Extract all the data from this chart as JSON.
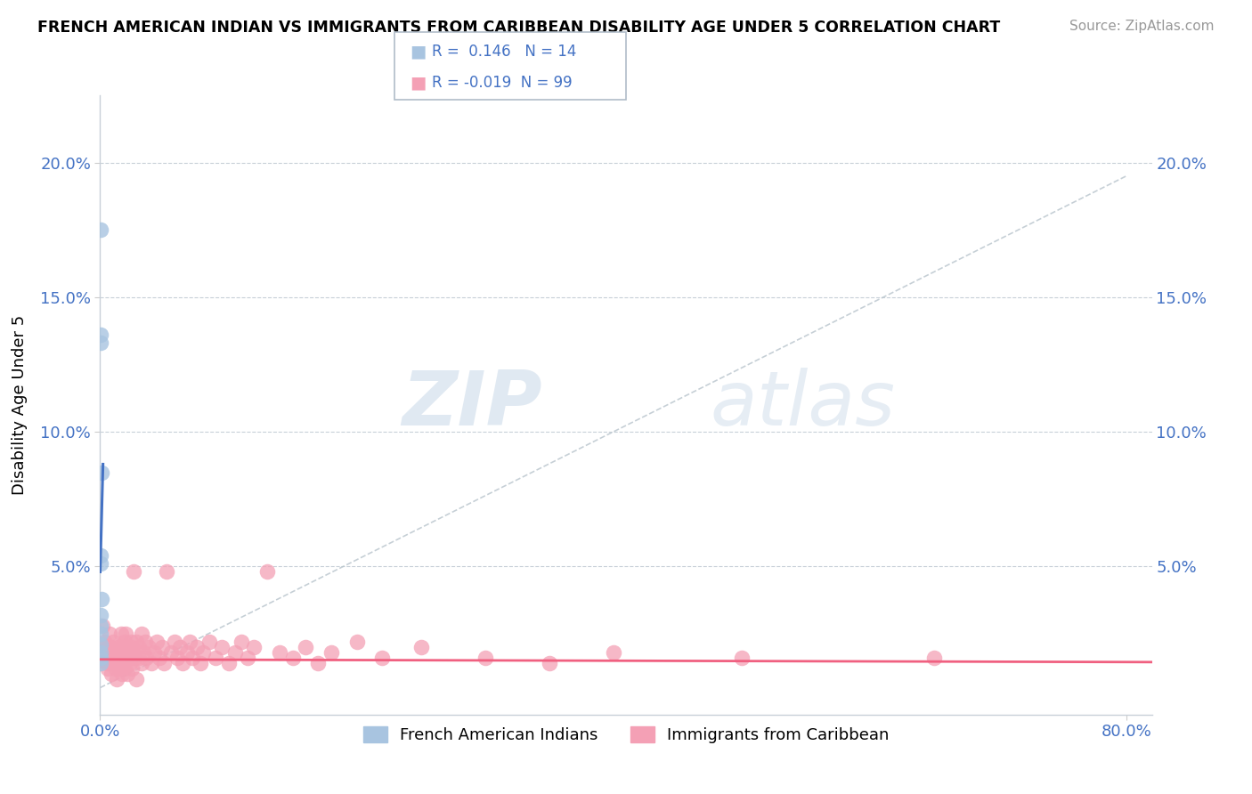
{
  "title": "FRENCH AMERICAN INDIAN VS IMMIGRANTS FROM CARIBBEAN DISABILITY AGE UNDER 5 CORRELATION CHART",
  "source": "Source: ZipAtlas.com",
  "ylabel": "Disability Age Under 5",
  "r_blue": 0.146,
  "n_blue": 14,
  "r_pink": -0.019,
  "n_pink": 99,
  "xlim": [
    0,
    0.82
  ],
  "ylim": [
    -0.005,
    0.225
  ],
  "yticks": [
    0.05,
    0.1,
    0.15,
    0.2
  ],
  "ytick_labels": [
    "5.0%",
    "10.0%",
    "15.0%",
    "20.0%"
  ],
  "xticks": [
    0.0,
    0.8
  ],
  "xtick_labels": [
    "0.0%",
    "80.0%"
  ],
  "color_blue": "#a8c4e0",
  "color_pink": "#f4a0b5",
  "line_blue": "#4472c4",
  "line_pink": "#f06080",
  "line_dashed": "#b8c4cc",
  "watermark_zip": "ZIP",
  "watermark_atlas": "atlas",
  "background": "#ffffff",
  "blue_scatter": [
    [
      0.0005,
      0.175
    ],
    [
      0.0005,
      0.136
    ],
    [
      0.0005,
      0.133
    ],
    [
      0.0008,
      0.085
    ],
    [
      0.0005,
      0.054
    ],
    [
      0.0005,
      0.051
    ],
    [
      0.0005,
      0.032
    ],
    [
      0.0005,
      0.028
    ],
    [
      0.0008,
      0.038
    ],
    [
      0.0005,
      0.025
    ],
    [
      0.0005,
      0.021
    ],
    [
      0.0005,
      0.018
    ],
    [
      0.0005,
      0.016
    ],
    [
      0.0005,
      0.014
    ]
  ],
  "pink_scatter": [
    [
      0.001,
      0.02
    ],
    [
      0.002,
      0.028
    ],
    [
      0.002,
      0.015
    ],
    [
      0.003,
      0.022
    ],
    [
      0.003,
      0.018
    ],
    [
      0.004,
      0.016
    ],
    [
      0.005,
      0.014
    ],
    [
      0.005,
      0.02
    ],
    [
      0.006,
      0.018
    ],
    [
      0.006,
      0.012
    ],
    [
      0.007,
      0.025
    ],
    [
      0.007,
      0.016
    ],
    [
      0.008,
      0.02
    ],
    [
      0.008,
      0.014
    ],
    [
      0.009,
      0.018
    ],
    [
      0.009,
      0.01
    ],
    [
      0.01,
      0.022
    ],
    [
      0.01,
      0.016
    ],
    [
      0.011,
      0.02
    ],
    [
      0.011,
      0.014
    ],
    [
      0.012,
      0.018
    ],
    [
      0.012,
      0.012
    ],
    [
      0.013,
      0.016
    ],
    [
      0.013,
      0.008
    ],
    [
      0.014,
      0.02
    ],
    [
      0.014,
      0.014
    ],
    [
      0.015,
      0.018
    ],
    [
      0.015,
      0.012
    ],
    [
      0.016,
      0.025
    ],
    [
      0.016,
      0.016
    ],
    [
      0.017,
      0.02
    ],
    [
      0.017,
      0.01
    ],
    [
      0.018,
      0.018
    ],
    [
      0.018,
      0.014
    ],
    [
      0.019,
      0.022
    ],
    [
      0.019,
      0.012
    ],
    [
      0.02,
      0.025
    ],
    [
      0.02,
      0.016
    ],
    [
      0.021,
      0.02
    ],
    [
      0.021,
      0.01
    ],
    [
      0.022,
      0.018
    ],
    [
      0.023,
      0.014
    ],
    [
      0.024,
      0.022
    ],
    [
      0.024,
      0.016
    ],
    [
      0.025,
      0.02
    ],
    [
      0.025,
      0.012
    ],
    [
      0.026,
      0.018
    ],
    [
      0.026,
      0.048
    ],
    [
      0.027,
      0.016
    ],
    [
      0.028,
      0.022
    ],
    [
      0.028,
      0.008
    ],
    [
      0.03,
      0.02
    ],
    [
      0.03,
      0.016
    ],
    [
      0.032,
      0.025
    ],
    [
      0.032,
      0.014
    ],
    [
      0.034,
      0.018
    ],
    [
      0.035,
      0.022
    ],
    [
      0.036,
      0.016
    ],
    [
      0.038,
      0.02
    ],
    [
      0.04,
      0.014
    ],
    [
      0.042,
      0.018
    ],
    [
      0.044,
      0.022
    ],
    [
      0.046,
      0.016
    ],
    [
      0.048,
      0.02
    ],
    [
      0.05,
      0.014
    ],
    [
      0.052,
      0.048
    ],
    [
      0.055,
      0.018
    ],
    [
      0.058,
      0.022
    ],
    [
      0.06,
      0.016
    ],
    [
      0.062,
      0.02
    ],
    [
      0.064,
      0.014
    ],
    [
      0.068,
      0.018
    ],
    [
      0.07,
      0.022
    ],
    [
      0.072,
      0.016
    ],
    [
      0.075,
      0.02
    ],
    [
      0.078,
      0.014
    ],
    [
      0.08,
      0.018
    ],
    [
      0.085,
      0.022
    ],
    [
      0.09,
      0.016
    ],
    [
      0.095,
      0.02
    ],
    [
      0.1,
      0.014
    ],
    [
      0.105,
      0.018
    ],
    [
      0.11,
      0.022
    ],
    [
      0.115,
      0.016
    ],
    [
      0.12,
      0.02
    ],
    [
      0.13,
      0.048
    ],
    [
      0.14,
      0.018
    ],
    [
      0.15,
      0.016
    ],
    [
      0.16,
      0.02
    ],
    [
      0.17,
      0.014
    ],
    [
      0.18,
      0.018
    ],
    [
      0.2,
      0.022
    ],
    [
      0.22,
      0.016
    ],
    [
      0.25,
      0.02
    ],
    [
      0.3,
      0.016
    ],
    [
      0.35,
      0.014
    ],
    [
      0.4,
      0.018
    ],
    [
      0.5,
      0.016
    ],
    [
      0.65,
      0.016
    ]
  ],
  "blue_line_x": [
    0.0,
    0.0022
  ],
  "blue_line_y": [
    0.048,
    0.088
  ],
  "dashed_line_x": [
    0.0,
    0.8
  ],
  "dashed_line_y": [
    0.005,
    0.195
  ],
  "pink_line_x": [
    0.0,
    0.82
  ],
  "pink_line_y": [
    0.0155,
    0.0145
  ]
}
